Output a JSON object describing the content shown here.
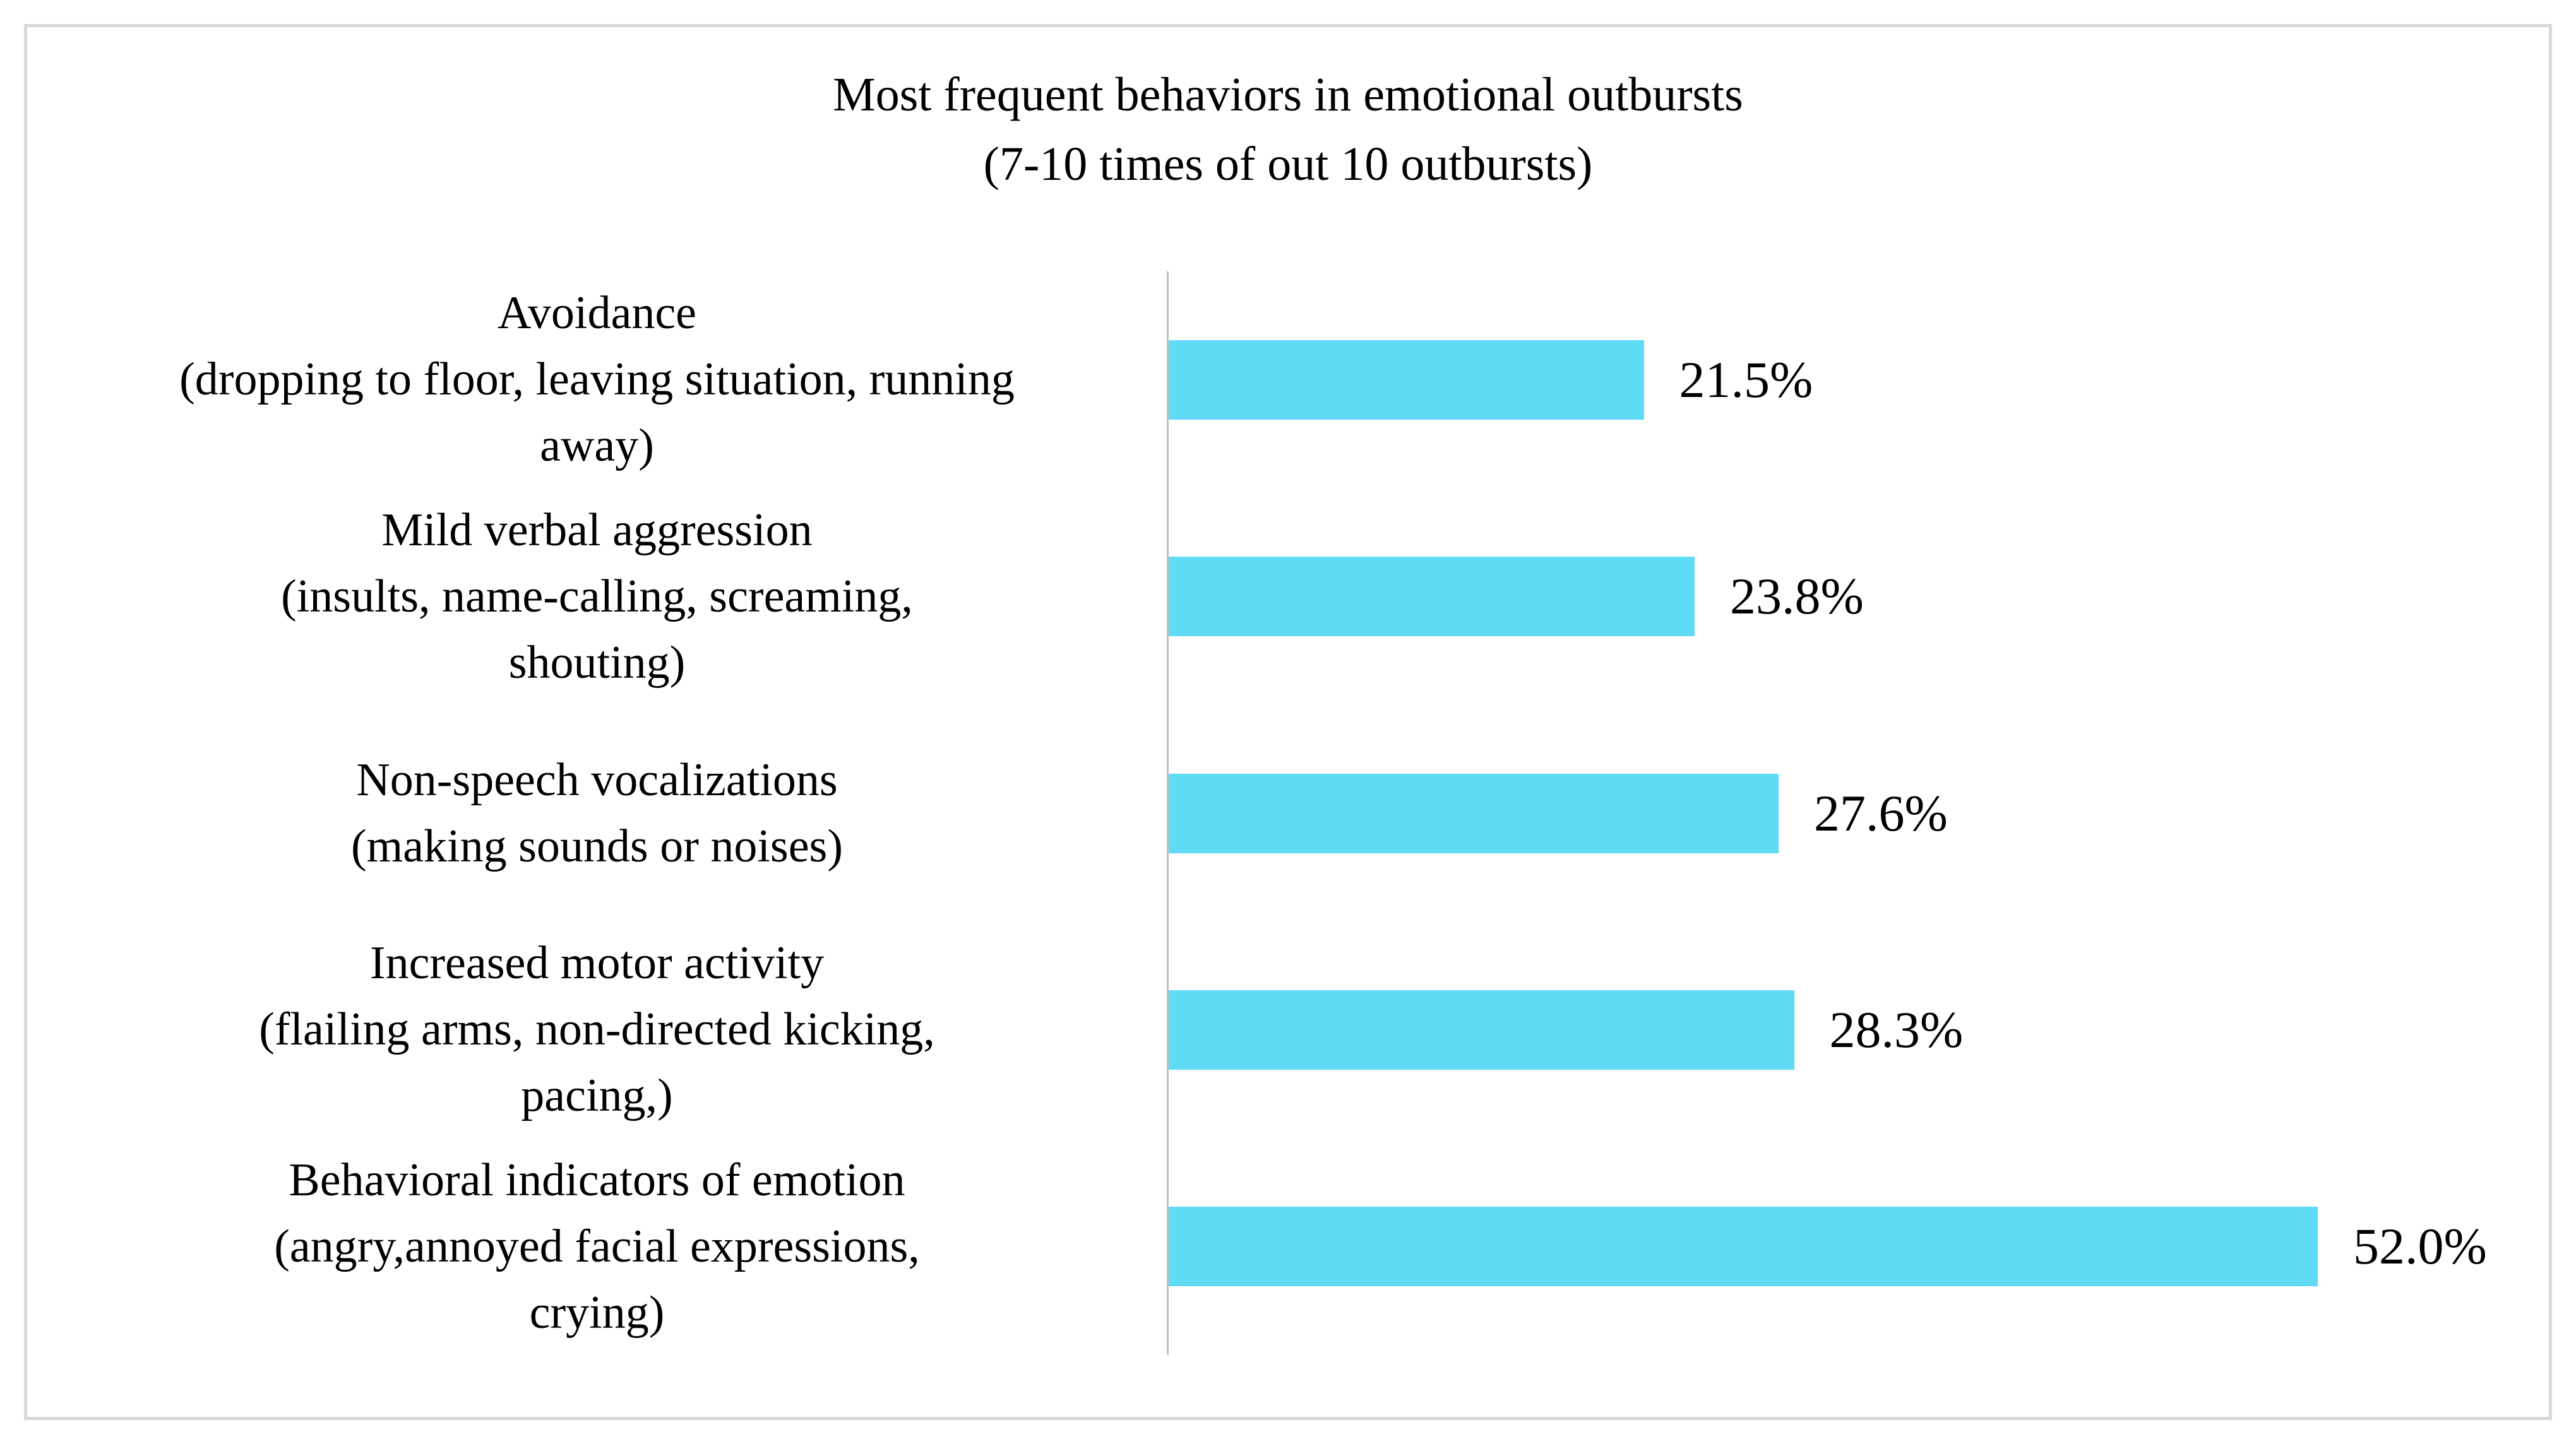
{
  "chart_data": {
    "type": "bar",
    "orientation": "horizontal",
    "title": "Most frequent behaviors in emotional outbursts",
    "subtitle": "(7-10 times of out 10 outbursts)",
    "categories": [
      "Avoidance",
      "Mild verbal aggression",
      "Non-speech vocalizations",
      "Increased motor activity",
      "Behavioral indicators of emotion"
    ],
    "category_details_lines": [
      [
        "(dropping to floor, leaving situation, running",
        "away)"
      ],
      [
        "(insults, name-calling, screaming,",
        "shouting)"
      ],
      [
        "(making sounds or noises)"
      ],
      [
        "(flailing arms, non-directed kicking,",
        "pacing,)"
      ],
      [
        "(angry,annoyed facial expressions,",
        "crying)"
      ]
    ],
    "values": [
      21.5,
      23.8,
      27.6,
      28.3,
      52.0
    ],
    "data_labels": [
      "21.5%",
      "23.8%",
      "27.6%",
      "28.3%",
      "52.0%"
    ],
    "xlim": [
      0,
      60
    ],
    "grid": false,
    "legend": "none",
    "bar_color": "#60dbf5",
    "axis_line_color": "#bfbfbf",
    "frame_border_color": "#d9d9d9",
    "text_color": "#000000"
  }
}
